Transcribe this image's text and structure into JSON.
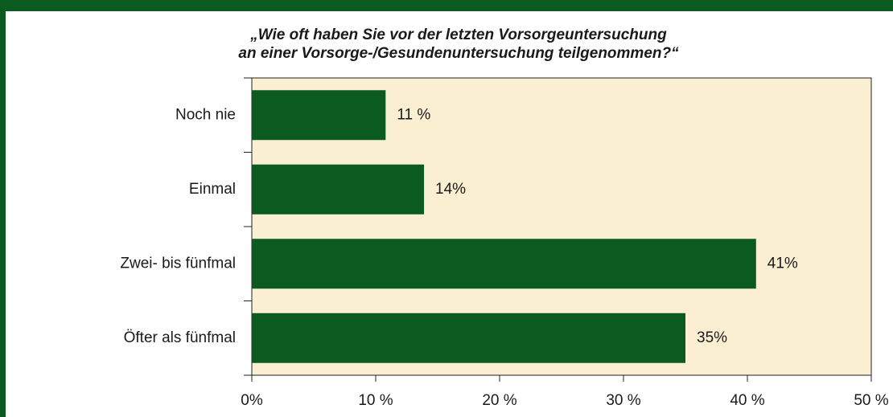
{
  "chart_data": {
    "type": "hbar",
    "title": [
      "„Wie oft haben Sie vor der letzten Vorsorgeuntersuchung",
      "an einer Vorsorge-/Gesundenuntersuchung teilgenommen?“"
    ],
    "categories": [
      "Noch nie",
      "Einmal",
      "Zwei- bis fünfmal",
      "Öfter als fünfmal"
    ],
    "values": [
      10.8,
      13.9,
      40.7,
      35
    ],
    "value_labels": [
      "11 %",
      "14%",
      "41%",
      "35%"
    ],
    "color": "#0b5a1f",
    "xlim": [
      0,
      50
    ],
    "xticks": [
      {
        "value": 0,
        "label": "0%"
      },
      {
        "value": 10,
        "label": "10 %"
      },
      {
        "value": 20,
        "label": "20 %"
      },
      {
        "value": 30,
        "label": "30 %"
      },
      {
        "value": 40,
        "label": "40 %"
      },
      {
        "value": 50,
        "label": "50 %"
      }
    ]
  }
}
